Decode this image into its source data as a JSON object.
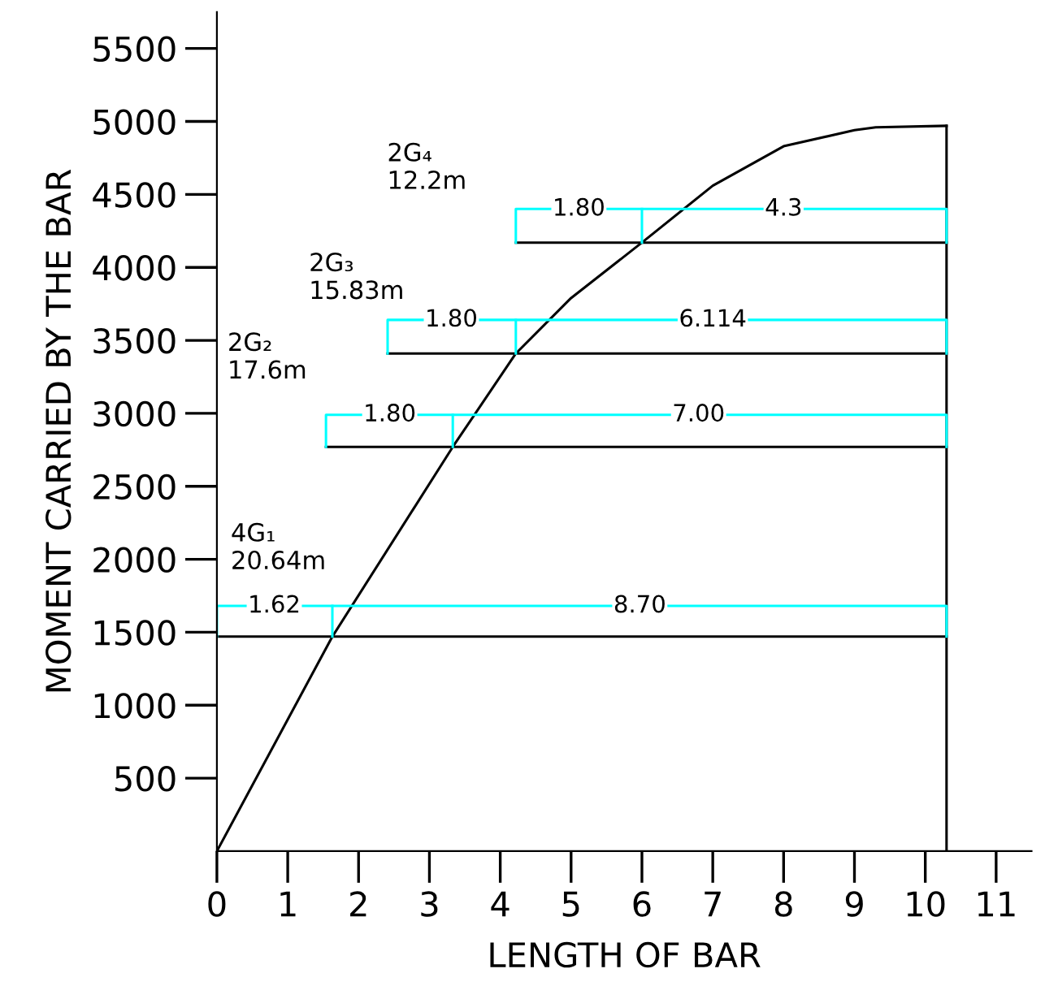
{
  "chart_data": {
    "type": "line",
    "xlabel": "LENGTH OF BAR",
    "ylabel": "MOMENT CARRIED BY THE BAR",
    "xlim": [
      0,
      11.5
    ],
    "ylim": [
      0,
      5750
    ],
    "xticks": [
      0,
      1,
      2,
      3,
      4,
      5,
      6,
      7,
      8,
      9,
      10,
      11
    ],
    "yticks": [
      500,
      1000,
      1500,
      2000,
      2500,
      3000,
      3500,
      4000,
      4500,
      5000,
      5500
    ],
    "grid": false,
    "legend": false,
    "marker": "none",
    "series": [
      {
        "color": "#000000",
        "x": [
          0,
          1.63,
          3.33,
          4.22,
          5,
          6.0,
          7,
          8,
          9,
          9.3,
          10.3
        ],
        "values": [
          0,
          1470,
          2770,
          3410,
          3790,
          4170,
          4560,
          4830,
          4940,
          4960,
          4970
        ]
      },
      {
        "color": "#000000",
        "x": [
          10.3,
          10.3
        ],
        "values": [
          0,
          4970
        ]
      },
      {
        "color": "#000000",
        "x": [
          0,
          10.3
        ],
        "values": [
          1470,
          1470
        ]
      },
      {
        "color": "#000000",
        "x": [
          1.54,
          10.3
        ],
        "values": [
          2770,
          2770
        ]
      },
      {
        "color": "#000000",
        "x": [
          2.41,
          10.3
        ],
        "values": [
          3410,
          3410
        ]
      },
      {
        "color": "#000000",
        "x": [
          4.22,
          10.3
        ],
        "values": [
          4170,
          4170
        ]
      },
      {
        "color": "#00ffff",
        "x": [
          0,
          0,
          10.3,
          10.3
        ],
        "values": [
          1470,
          1680,
          1680,
          1470
        ]
      },
      {
        "color": "#00ffff",
        "x": [
          1.54,
          1.54,
          10.3,
          10.3
        ],
        "values": [
          2770,
          2990,
          2990,
          2770
        ]
      },
      {
        "color": "#00ffff",
        "x": [
          2.41,
          2.41,
          10.3,
          10.3
        ],
        "values": [
          3410,
          3640,
          3640,
          3410
        ]
      },
      {
        "color": "#00ffff",
        "x": [
          4.22,
          4.22,
          10.3,
          10.3
        ],
        "values": [
          4170,
          4400,
          4400,
          4170
        ]
      },
      {
        "color": "#00ffff",
        "x": [
          1.63,
          1.63
        ],
        "values": [
          1470,
          1680
        ]
      },
      {
        "color": "#00ffff",
        "x": [
          3.33,
          3.33
        ],
        "values": [
          2770,
          2990
        ]
      },
      {
        "color": "#00ffff",
        "x": [
          4.22,
          4.22
        ],
        "values": [
          3410,
          3640
        ]
      },
      {
        "color": "#00ffff",
        "x": [
          6.0,
          6.0
        ],
        "values": [
          4170,
          4400
        ]
      }
    ],
    "annotations": [
      {
        "text": "1.62",
        "x": 0.81,
        "y": 1680
      },
      {
        "text": "8.70",
        "x": 5.97,
        "y": 1680
      },
      {
        "text": "1.80",
        "x": 2.44,
        "y": 2990
      },
      {
        "text": "7.00",
        "x": 6.8,
        "y": 2990
      },
      {
        "text": "1.80",
        "x": 3.31,
        "y": 3640
      },
      {
        "text": "6.114",
        "x": 7.0,
        "y": 3640
      },
      {
        "text": "1.80",
        "x": 5.11,
        "y": 4400
      },
      {
        "text": "4.3",
        "x": 8.0,
        "y": 4400
      },
      "4G₁\n20.64m",
      "2G₂\n17.6m",
      "2G₃\n15.83m",
      "2G₄\n12.2m"
    ]
  }
}
